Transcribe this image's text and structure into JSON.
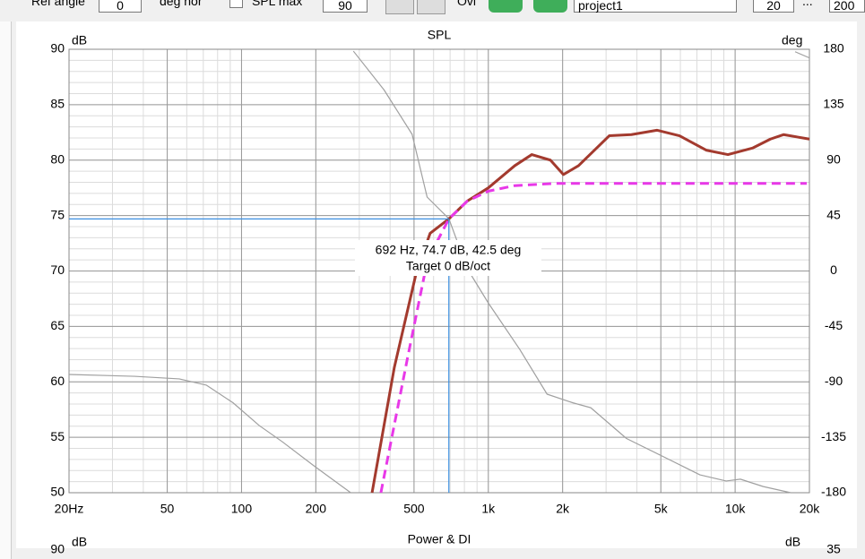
{
  "toolbar": {
    "ref_angle_label": "Ref angle",
    "ref_angle": "0",
    "deg_label": "deg hor",
    "spl_max_label": "SPL max",
    "spl_max": "90",
    "ovl_label": "Ovl",
    "project": "project1",
    "from": "20",
    "ellipsis": "...",
    "to": "200"
  },
  "chart_data": {
    "type": "line",
    "title": "SPL",
    "y_label": "dB",
    "y2_label": "deg",
    "xlog": true,
    "grid": true,
    "xlim": [
      20,
      20000
    ],
    "ylim": [
      50,
      90
    ],
    "y2lim": [
      -180,
      180
    ],
    "xticks": [
      {
        "value": 20,
        "label": "20Hz"
      },
      50,
      100,
      200,
      500,
      {
        "value": 1000,
        "label": "1k"
      },
      {
        "value": 2000,
        "label": "2k"
      },
      {
        "value": 5000,
        "label": "5k"
      },
      {
        "value": 10000,
        "label": "10k"
      },
      {
        "value": 20000,
        "label": "20k"
      }
    ],
    "yticks": [
      50,
      55,
      60,
      65,
      70,
      75,
      80,
      85,
      90
    ],
    "y2ticks": [
      180,
      135,
      90,
      45,
      0,
      -45,
      -90,
      -135,
      -180
    ],
    "series": [
      {
        "color": "#a33a2e",
        "x": [
          338,
          416,
          510,
          581,
          692,
          821,
          1000,
          1280,
          1500,
          1785,
          2015,
          2320,
          3090,
          3800,
          4820,
          5950,
          7630,
          9350,
          11800,
          13900,
          15700,
          20000
        ],
        "values": [
          50,
          61.3,
          69.8,
          73.4,
          74.7,
          76.3,
          77.5,
          79.5,
          80.5,
          80,
          78.7,
          79.5,
          82.2,
          82.3,
          82.7,
          82.2,
          80.9,
          80.5,
          81.1,
          81.9,
          82.3,
          81.9
        ]
      },
      {
        "color": "#e838e8",
        "dashed": true,
        "x": [
          367,
          470,
          567,
          692,
          821,
          1000,
          1280,
          1880,
          19500
        ],
        "values": [
          50,
          62.1,
          71,
          74.7,
          76.3,
          77.2,
          77.7,
          77.9,
          77.9
        ]
      },
      {
        "color": "#a0a0a0",
        "axis": "y2",
        "x": [
          20,
          36.8,
          55.9,
          72.1,
          92.4,
          118,
          146,
          196,
          277,
          280,
          284,
          378,
          491,
          565,
          692,
          821,
          1000,
          1340,
          1730,
          2200,
          2600,
          3630,
          5150,
          7200,
          9200,
          10500,
          13000,
          16800,
          17000,
          17500,
          20000
        ],
        "values": [
          -84,
          -85.5,
          -87.6,
          -92.7,
          -107,
          -125.5,
          -138.5,
          -158,
          -180,
          null,
          178.5,
          147,
          111,
          60,
          42.5,
          2,
          -26,
          -63.6,
          -100,
          -107,
          -111,
          -136,
          -151,
          -165.5,
          -170.5,
          -169,
          -175,
          -180,
          null,
          178,
          173
        ]
      }
    ],
    "cursor": {
      "x": 692,
      "y": 74.7
    },
    "annotation": [
      "692 Hz, 74.7 dB, 42.5 deg",
      "Target 0 dB/oct"
    ]
  },
  "power_di": {
    "title": "Power & DI",
    "y_label": "dB",
    "y2_label": "dB",
    "y_top": "90",
    "y2_top": "35"
  }
}
